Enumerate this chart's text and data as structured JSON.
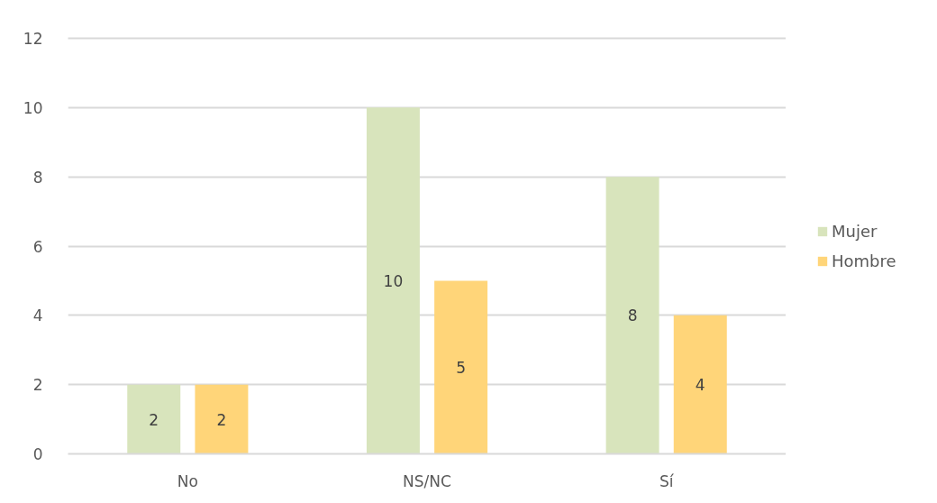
{
  "chart_data": {
    "type": "bar",
    "categories": [
      "No",
      "NS/NC",
      "Sí"
    ],
    "series": [
      {
        "name": "Mujer",
        "color": "#d8e4bc",
        "values": [
          2,
          10,
          8
        ]
      },
      {
        "name": "Hombre",
        "color": "#ffd579",
        "values": [
          2,
          5,
          4
        ]
      }
    ],
    "ylim": [
      0,
      12
    ],
    "yticks": [
      0,
      2,
      4,
      6,
      8,
      10,
      12
    ],
    "grid": "y",
    "legend": "right",
    "data_labels": true
  }
}
